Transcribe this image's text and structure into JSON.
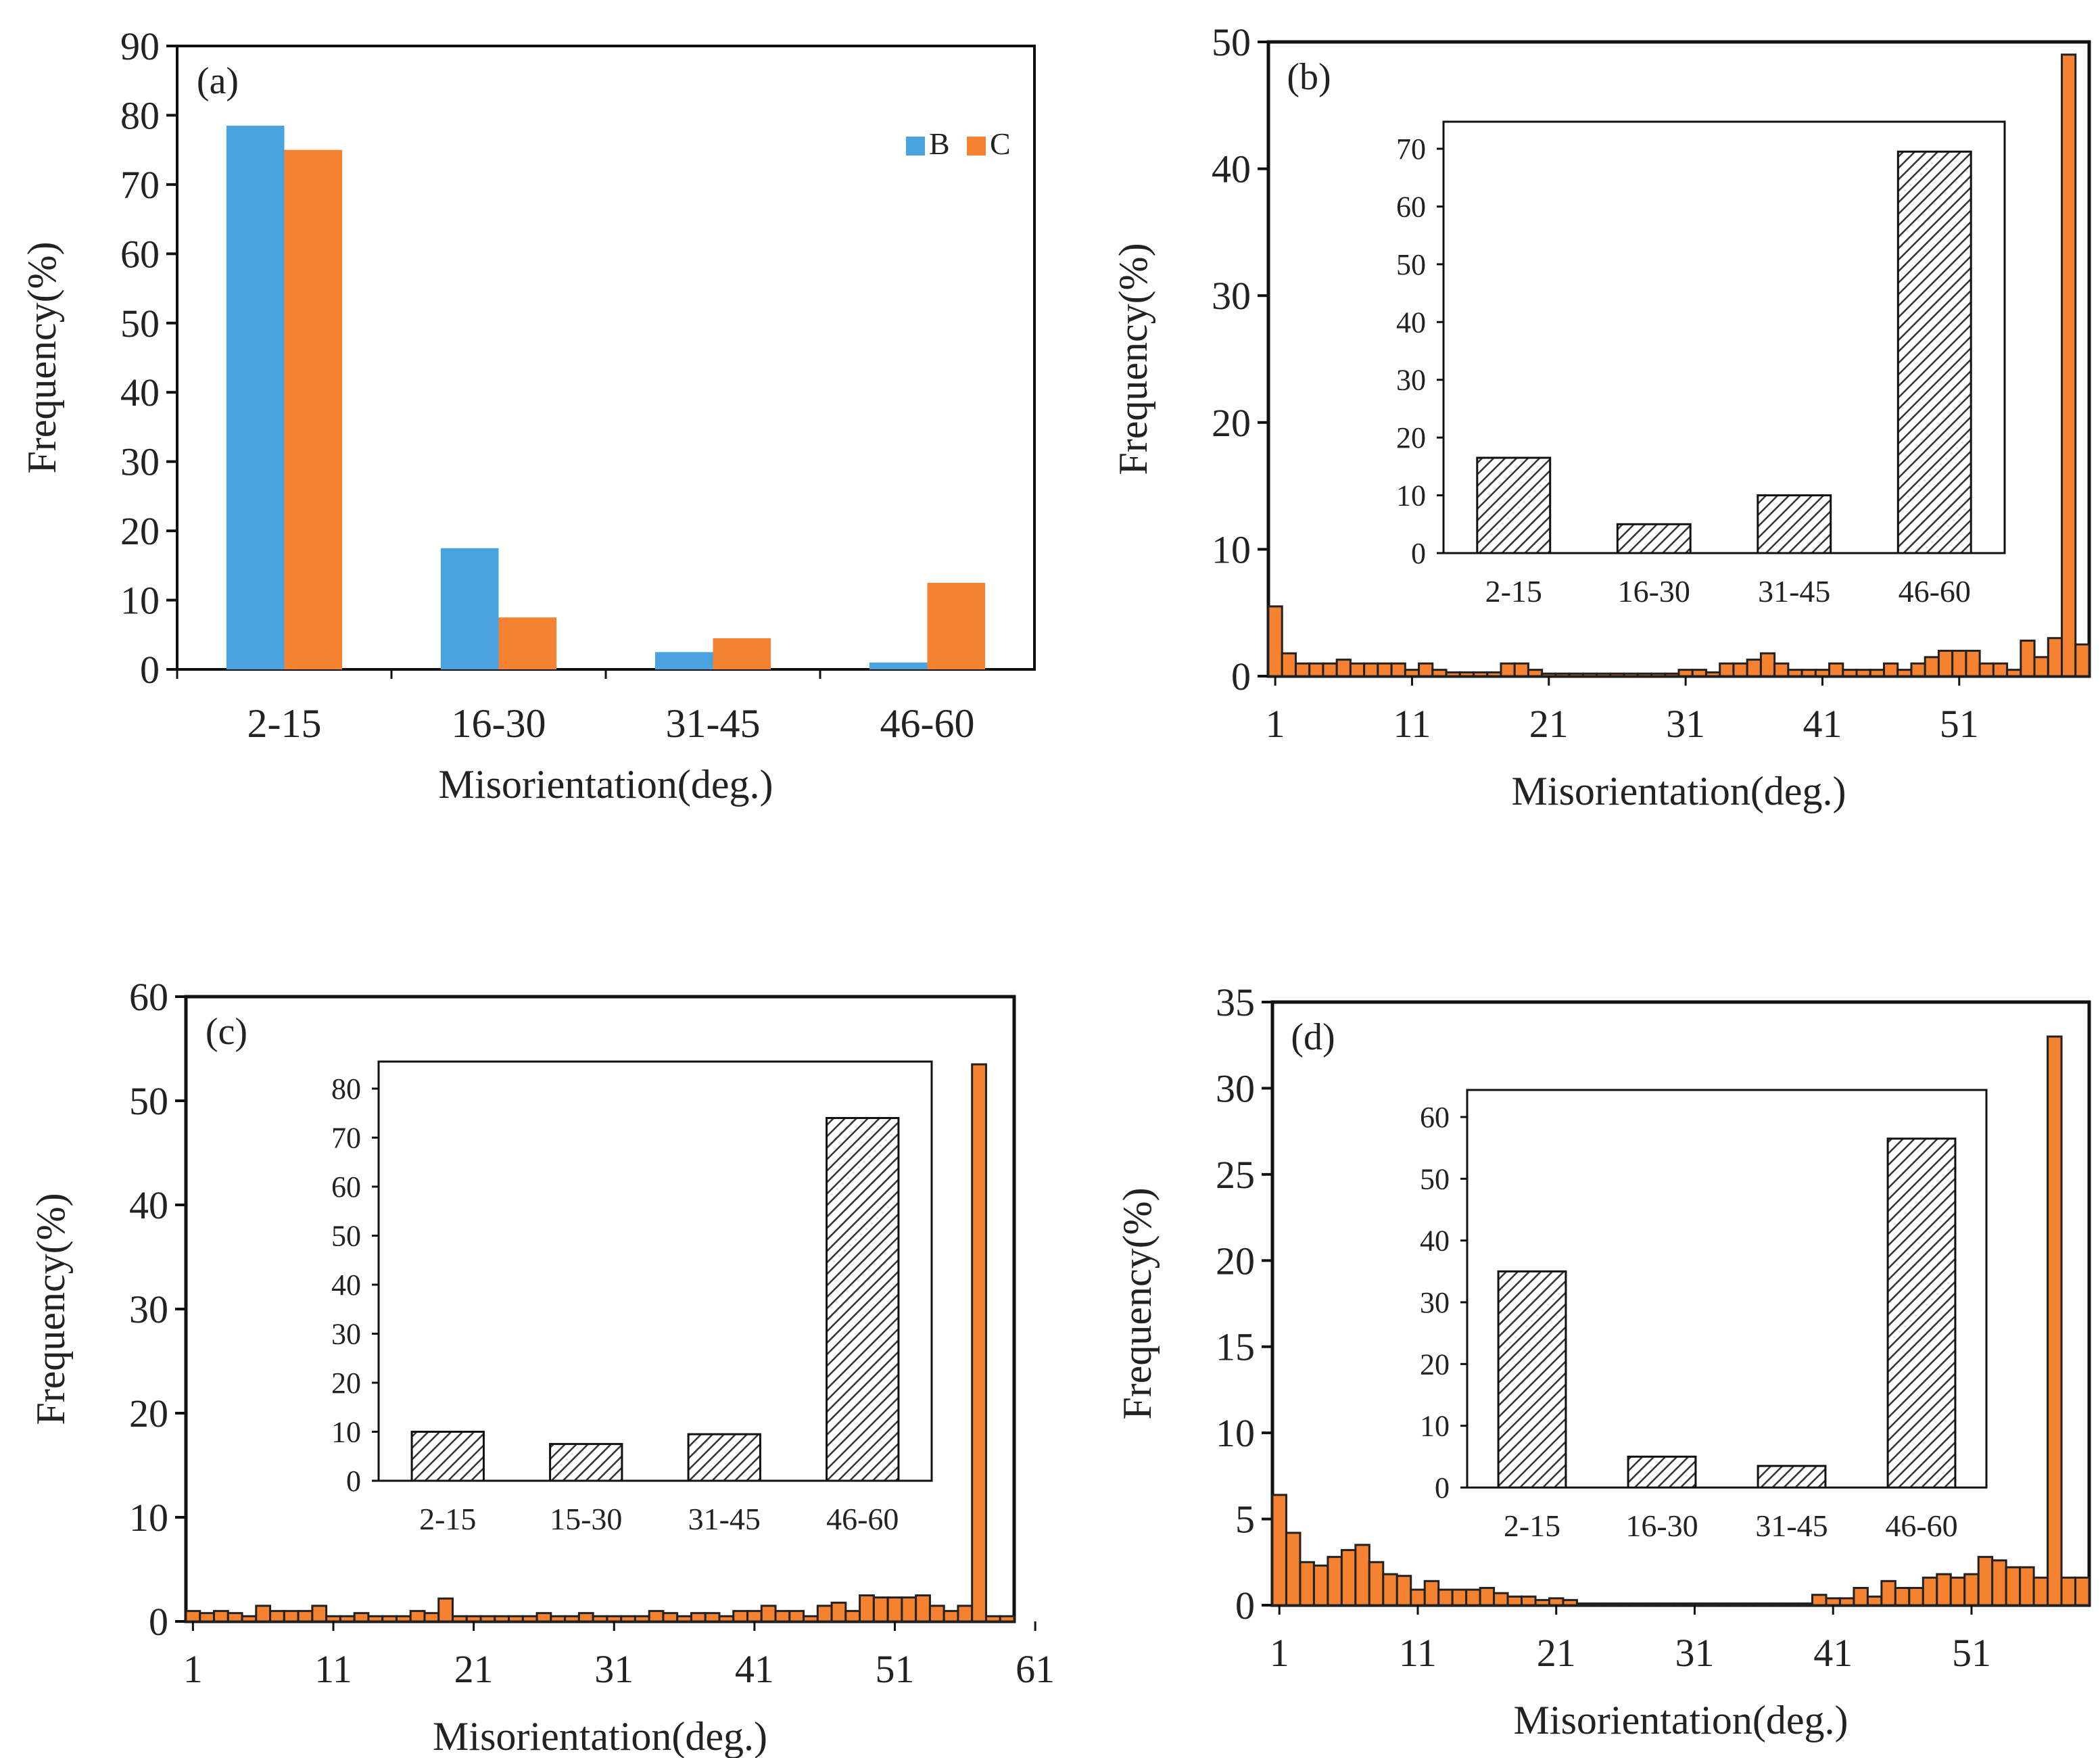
{
  "chart_data": [
    {
      "panel": "(a)",
      "type": "bar",
      "title": "",
      "xlabel": "Misorientation(deg.)",
      "ylabel": "Frequency(%)",
      "ylim": [
        0,
        90
      ],
      "yticks": [
        "0",
        "10",
        "20",
        "30",
        "40",
        "50",
        "60",
        "70",
        "80",
        "90"
      ],
      "categories": [
        "2-15",
        "16-30",
        "31-45",
        "46-60"
      ],
      "series": [
        {
          "name": "B",
          "color": "#4aa3df",
          "values": [
            78.5,
            17.5,
            2.5,
            1.0
          ]
        },
        {
          "name": "C",
          "color": "#f58231",
          "values": [
            75,
            7.5,
            4.5,
            12.5
          ]
        }
      ],
      "legend_position": "top-right",
      "grid": false
    },
    {
      "panel": "(b)",
      "type": "bar",
      "xlabel": "Misorientation(deg.)",
      "ylabel": "Frequency(%)",
      "ylim": [
        0,
        50
      ],
      "yticks": [
        "0",
        "10",
        "20",
        "30",
        "40",
        "50"
      ],
      "xticks": [
        "1",
        "11",
        "21",
        "31",
        "41",
        "51"
      ],
      "x_start": 1,
      "bar_color": "#f58231",
      "values": [
        5.5,
        1.8,
        1.0,
        1.0,
        1.0,
        1.3,
        1.0,
        1.0,
        1.0,
        1.0,
        0.5,
        1.0,
        0.5,
        0.3,
        0.3,
        0.3,
        0.3,
        1.0,
        1.0,
        0.5,
        0.2,
        0.2,
        0.2,
        0.2,
        0.2,
        0.2,
        0.2,
        0.2,
        0.2,
        0.2,
        0.5,
        0.5,
        0.3,
        1.0,
        1.0,
        1.3,
        1.8,
        1.0,
        0.5,
        0.5,
        0.5,
        1.0,
        0.5,
        0.5,
        0.5,
        1.0,
        0.5,
        1.0,
        1.5,
        2.0,
        2.0,
        2.0,
        1.0,
        1.0,
        0.5,
        2.8,
        1.5,
        3.0,
        49,
        2.5
      ],
      "inset": {
        "type": "bar",
        "ylim": [
          0,
          70
        ],
        "yticks": [
          "0",
          "10",
          "20",
          "30",
          "40",
          "50",
          "60",
          "70"
        ],
        "categories": [
          "2-15",
          "16-30",
          "31-45",
          "46-60"
        ],
        "values": [
          16.5,
          5,
          10,
          69.5
        ],
        "pattern": "hatched"
      },
      "grid": false
    },
    {
      "panel": "(c)",
      "type": "bar",
      "xlabel": "Misorientation(deg.)",
      "ylabel": "Frequency(%)",
      "ylim": [
        0,
        60
      ],
      "yticks": [
        "0",
        "10",
        "20",
        "30",
        "40",
        "50",
        "60"
      ],
      "xticks": [
        "1",
        "11",
        "21",
        "31",
        "41",
        "51",
        "61"
      ],
      "x_start": 1,
      "bar_color": "#f58231",
      "values": [
        1.0,
        0.8,
        1.0,
        0.8,
        0.5,
        1.5,
        1.0,
        1.0,
        1.0,
        1.5,
        0.5,
        0.5,
        0.8,
        0.5,
        0.5,
        0.5,
        1.0,
        0.8,
        2.2,
        0.5,
        0.5,
        0.5,
        0.5,
        0.5,
        0.5,
        0.8,
        0.5,
        0.5,
        0.8,
        0.5,
        0.5,
        0.5,
        0.5,
        1.0,
        0.8,
        0.5,
        0.8,
        0.8,
        0.5,
        1.0,
        1.0,
        1.5,
        1.0,
        1.0,
        0.5,
        1.5,
        1.8,
        1.0,
        2.5,
        2.3,
        2.3,
        2.3,
        2.5,
        1.5,
        1.0,
        1.5,
        53.5,
        0.5,
        0.5
      ],
      "inset": {
        "type": "bar",
        "ylim": [
          0,
          80
        ],
        "yticks": [
          "0",
          "10",
          "20",
          "30",
          "40",
          "50",
          "60",
          "70",
          "80"
        ],
        "categories": [
          "2-15",
          "15-30",
          "31-45",
          "46-60"
        ],
        "values": [
          10,
          7.5,
          9.5,
          74
        ],
        "pattern": "hatched"
      },
      "grid": false
    },
    {
      "panel": "(d)",
      "type": "bar",
      "xlabel": "Misorientation(deg.)",
      "ylabel": "Frequency(%)",
      "ylim": [
        0,
        35
      ],
      "yticks": [
        "0",
        "5",
        "10",
        "15",
        "20",
        "25",
        "30",
        "35"
      ],
      "xticks": [
        "1",
        "11",
        "21",
        "31",
        "41",
        "51"
      ],
      "x_start": 1,
      "bar_color": "#f58231",
      "values": [
        6.4,
        4.2,
        2.5,
        2.3,
        2.8,
        3.2,
        3.5,
        2.5,
        1.8,
        1.7,
        0.9,
        1.4,
        0.9,
        0.9,
        0.9,
        1.0,
        0.7,
        0.5,
        0.5,
        0.3,
        0.4,
        0.3,
        0.1,
        0.1,
        0.1,
        0.1,
        0.1,
        0.1,
        0.1,
        0.1,
        0.1,
        0.1,
        0.1,
        0.1,
        0.1,
        0.1,
        0.1,
        0.1,
        0.1,
        0.6,
        0.4,
        0.4,
        1.0,
        0.5,
        1.4,
        1.0,
        1.0,
        1.6,
        1.8,
        1.6,
        1.8,
        2.8,
        2.6,
        2.2,
        2.2,
        1.6,
        33,
        1.6,
        1.6
      ],
      "inset": {
        "type": "bar",
        "ylim": [
          0,
          60
        ],
        "yticks": [
          "0",
          "10",
          "20",
          "30",
          "40",
          "50",
          "60"
        ],
        "categories": [
          "2-15",
          "16-30",
          "31-45",
          "46-60"
        ],
        "values": [
          35,
          5,
          3.5,
          56.5
        ],
        "pattern": "hatched"
      },
      "grid": false
    }
  ]
}
